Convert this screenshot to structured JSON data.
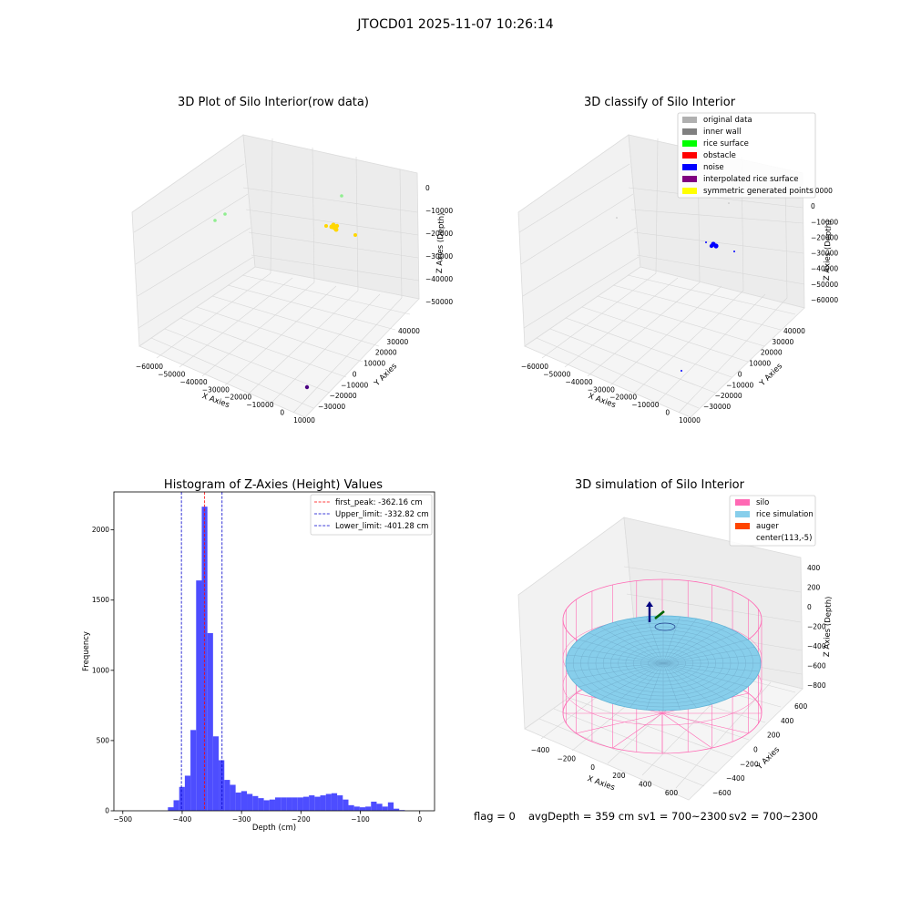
{
  "suptitle": "JTOCD01 2025-11-07 10:26:14",
  "status": {
    "flag": "flag = 0",
    "avg": "avgDepth = 359 cm",
    "sv1": "sv1 = 700~2300",
    "sv2": "sv2 = 700~2300"
  },
  "colors": {
    "hist_bar": "#4d4dff",
    "silo": "#ff69b4",
    "rice": "#87ceeb",
    "auger": "#ff4500",
    "noise": "#0000ff",
    "symmetric": "#ffff00",
    "interpolated": "#800080",
    "rice_surface": "#00ff00",
    "obstacle": "#ff0000",
    "inner_wall": "#808080",
    "original": "#b0b0b0"
  },
  "chart_data": [
    {
      "type": "scatter",
      "projection": "3d",
      "title": "3D Plot of Silo Interior(row data)",
      "xlabel": "X Axies",
      "ylabel": "Y Axies",
      "zlabel": "Z Axies (Depth)",
      "x_ticks": [
        "-60000",
        "-50000",
        "-40000",
        "-30000",
        "-20000",
        "-10000",
        "0",
        "10000"
      ],
      "y_ticks": [
        "-30000",
        "-20000",
        "-10000",
        "0",
        "10000",
        "20000",
        "30000",
        "40000"
      ],
      "z_ticks": [
        "0",
        "-10000",
        "-20000",
        "-30000",
        "-40000",
        "-50000"
      ],
      "z_tick_labels": [
        "0",
        "10000",
        "20000",
        "30000",
        "40000",
        "50000"
      ],
      "grid": true
    },
    {
      "type": "scatter",
      "projection": "3d",
      "title": "3D classify of Silo Interior",
      "xlabel": "X Axies",
      "ylabel": "Y Axies",
      "zlabel": "Z Axies (Depth)",
      "x_ticks": [
        "-60000",
        "-50000",
        "-40000",
        "-30000",
        "-20000",
        "-10000",
        "0",
        "10000"
      ],
      "y_ticks": [
        "-30000",
        "-20000",
        "-10000",
        "0",
        "10000",
        "20000",
        "30000",
        "40000"
      ],
      "z_ticks": [
        "10000",
        "0",
        "-10000",
        "-20000",
        "-30000",
        "-40000",
        "-50000",
        "-60000"
      ],
      "z_tick_labels": [
        "10000",
        "0",
        "10000",
        "20000",
        "30000",
        "40000",
        "50000",
        "60000"
      ],
      "legend_position": "top-right",
      "legend": [
        {
          "label": "original data",
          "color": "#b0b0b0"
        },
        {
          "label": "inner wall",
          "color": "#808080"
        },
        {
          "label": "rice surface",
          "color": "#00ff00"
        },
        {
          "label": "obstacle",
          "color": "#ff0000"
        },
        {
          "label": "noise",
          "color": "#0000ff"
        },
        {
          "label": "interpolated rice surface",
          "color": "#800080"
        },
        {
          "label": "symmetric generated points",
          "color": "#ffff00"
        }
      ],
      "grid": true
    },
    {
      "type": "bar",
      "title": "Histogram of Z-Axies (Height) Values",
      "xlabel": "Depth (cm)",
      "ylabel": "Frequency",
      "xlim": [
        -515,
        25
      ],
      "ylim": [
        0,
        2270
      ],
      "x_ticks": [
        -500,
        -400,
        -300,
        -200,
        -100,
        0
      ],
      "y_ticks": [
        0,
        500,
        1000,
        1500,
        2000
      ],
      "bin_width": 9.5,
      "bin_start": -424,
      "values": [
        25,
        75,
        170,
        250,
        575,
        1640,
        2165,
        1265,
        530,
        360,
        220,
        185,
        130,
        140,
        120,
        105,
        90,
        75,
        80,
        95,
        95,
        95,
        95,
        95,
        100,
        110,
        100,
        110,
        120,
        125,
        110,
        80,
        40,
        30,
        25,
        30,
        65,
        50,
        30,
        60,
        15,
        5
      ],
      "vlines": [
        {
          "x": -362.16,
          "label": "first_peak: -362.16 cm",
          "color": "#ff0000"
        },
        {
          "x": -332.82,
          "label": "Upper_limit: -332.82 cm",
          "color": "#0000cc"
        },
        {
          "x": -401.28,
          "label": "Lower_limit: -401.28 cm",
          "color": "#0000cc"
        }
      ],
      "legend_position": "top-right",
      "grid": false
    },
    {
      "type": "surface",
      "projection": "3d",
      "title": "3D simulation of Silo Interior",
      "xlabel": "X Axies",
      "ylabel": "Y Axies",
      "zlabel": "Z Axies (Depth)",
      "x_ticks": [
        "-400",
        "-200",
        "0",
        "200",
        "400",
        "600"
      ],
      "y_ticks": [
        "-600",
        "-400",
        "-200",
        "0",
        "200",
        "400",
        "600"
      ],
      "z_ticks": [
        "400",
        "200",
        "0",
        "-200",
        "-400",
        "-600",
        "-800"
      ],
      "legend_position": "top-right",
      "legend": [
        {
          "label": "silo",
          "color": "#ff69b4"
        },
        {
          "label": "rice simulation",
          "color": "#87ceeb"
        },
        {
          "label": "auger",
          "color": "#ff4500"
        },
        {
          "label": "center(113,-5)",
          "color": "none"
        }
      ],
      "grid": true
    }
  ]
}
